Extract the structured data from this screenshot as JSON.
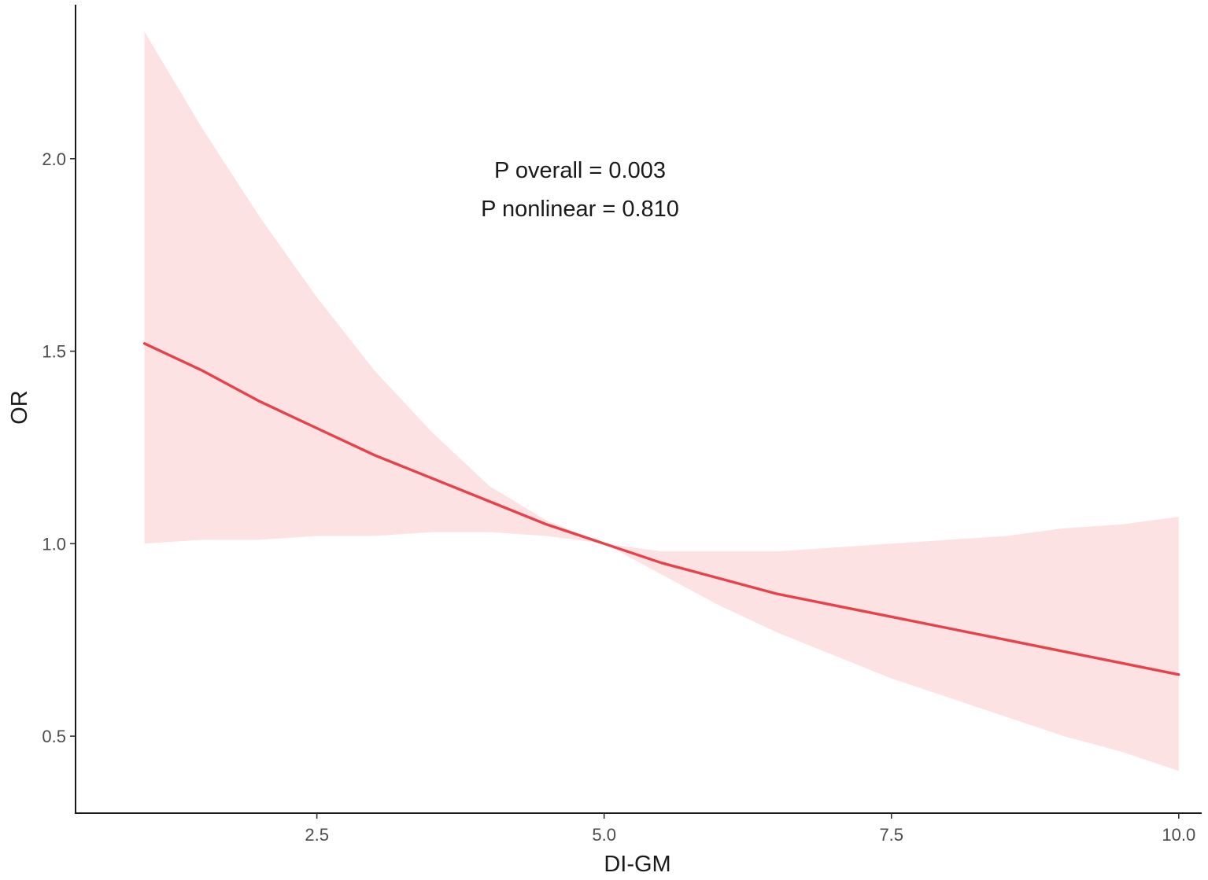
{
  "chart_data": {
    "type": "line",
    "title": "",
    "xlabel": "DI-GM",
    "ylabel": "OR",
    "xlim": [
      0.4,
      10.2
    ],
    "ylim": [
      0.3,
      2.4
    ],
    "x_ticks": [
      2.5,
      5.0,
      7.5,
      10.0
    ],
    "x_tick_labels": [
      "2.5",
      "5.0",
      "7.5",
      "10.0"
    ],
    "y_ticks": [
      0.5,
      1.0,
      1.5,
      2.0
    ],
    "y_tick_labels": [
      "0.5",
      "1.0",
      "1.5",
      "2.0"
    ],
    "grid": false,
    "annotations": [
      "P overall = 0.003",
      "P nonlinear = 0.810"
    ],
    "series": [
      {
        "color": "#e8414a",
        "band_color": "#fde2e4",
        "x": [
          1.0,
          1.5,
          2.0,
          2.5,
          3.0,
          3.5,
          4.0,
          4.5,
          5.0,
          5.5,
          6.0,
          6.5,
          7.0,
          7.5,
          8.0,
          8.5,
          9.0,
          9.5,
          10.0
        ],
        "y": [
          1.52,
          1.45,
          1.37,
          1.3,
          1.23,
          1.17,
          1.11,
          1.05,
          1.0,
          0.95,
          0.91,
          0.87,
          0.84,
          0.81,
          0.78,
          0.75,
          0.72,
          0.69,
          0.66
        ],
        "lower": [
          1.0,
          1.01,
          1.01,
          1.02,
          1.02,
          1.03,
          1.03,
          1.02,
          1.0,
          0.92,
          0.84,
          0.77,
          0.71,
          0.65,
          0.6,
          0.55,
          0.5,
          0.46,
          0.41
        ],
        "upper": [
          2.33,
          2.08,
          1.85,
          1.64,
          1.45,
          1.29,
          1.15,
          1.06,
          1.0,
          0.98,
          0.98,
          0.98,
          0.99,
          1.0,
          1.01,
          1.02,
          1.04,
          1.05,
          1.07
        ]
      }
    ]
  }
}
